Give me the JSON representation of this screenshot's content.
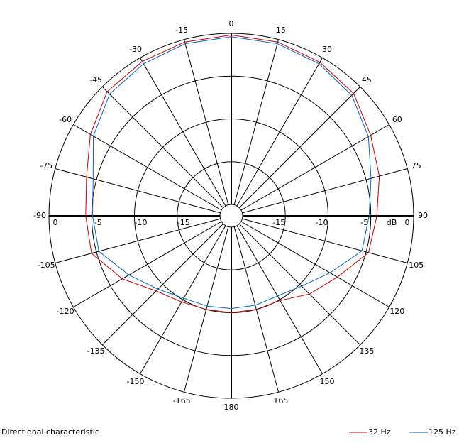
{
  "chart_data": {
    "type": "polar",
    "title": "Directional characteristic",
    "rlabel": "dB",
    "theta": [
      -165,
      -150,
      -135,
      -120,
      -105,
      -90,
      -75,
      -60,
      -45,
      -30,
      -15,
      0,
      15,
      30,
      45,
      60,
      75,
      90,
      105,
      120,
      135,
      150,
      165,
      180
    ],
    "thetaticks": [
      -165,
      -150,
      -135,
      -120,
      -105,
      -90,
      -75,
      -60,
      -45,
      -30,
      -15,
      0,
      15,
      30,
      45,
      60,
      75,
      90,
      105,
      120,
      135,
      150,
      165,
      180
    ],
    "rlim": [
      -20,
      0
    ],
    "rticks": [
      -15,
      -10,
      -5,
      0
    ],
    "series": [
      {
        "name": "32 Hz",
        "color": "#cc0000",
        "values": [
          -10.0,
          -9.7,
          -8.9,
          -6.6,
          -4.4,
          -4.3,
          -3.8,
          -2.3,
          -0.8,
          -0.5,
          -0.3,
          -0.2,
          -0.3,
          -0.6,
          -1.1,
          -2.5,
          -3.4,
          -4.3,
          -4.7,
          -7.0,
          -8.4,
          -9.9,
          -10.0,
          -10.0
        ]
      },
      {
        "name": "125 Hz",
        "color": "#0066cc",
        "values": [
          -10.4,
          -10.2,
          -9.2,
          -7.5,
          -5.3,
          -5.1,
          -4.6,
          -2.7,
          -1.2,
          -0.8,
          -0.5,
          -0.4,
          -0.5,
          -0.8,
          -1.4,
          -2.8,
          -4.4,
          -5.2,
          -5.5,
          -8.0,
          -9.7,
          -10.5,
          -10.5,
          -10.5
        ]
      }
    ]
  }
}
